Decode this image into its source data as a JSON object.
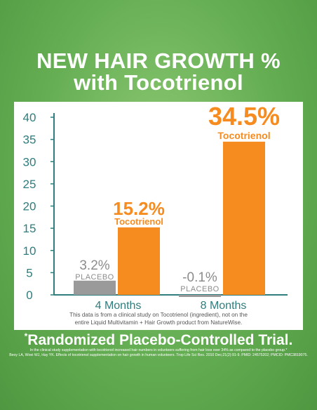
{
  "title_line1": "NEW HAIR GROWTH %",
  "title_line2": "with Tocotrienol",
  "chart_data": {
    "type": "bar",
    "categories": [
      "4 Months",
      "8 Months"
    ],
    "series": [
      {
        "name": "PLACEBO",
        "values": [
          3.2,
          -0.1
        ],
        "labels": [
          "3.2%",
          "-0.1%"
        ],
        "color": "#9a9a9a",
        "label_color": "#8c8c8c"
      },
      {
        "name": "Tocotrienol",
        "values": [
          15.2,
          34.5
        ],
        "labels": [
          "15.2%",
          "34.5%"
        ],
        "color": "#f68b1f",
        "label_color": "#f68b1f"
      }
    ],
    "ylim": [
      0,
      40
    ],
    "yticks": [
      "0",
      "5",
      "10",
      "15",
      "20",
      "25",
      "30",
      "35",
      "40"
    ],
    "axis_color": "#2f7d7d"
  },
  "footnote_line1": "This data is from a clinical study on Tocotrienol (ingredient), not on the",
  "footnote_line2": "entire Liquid Multivitamin + Hair Growth product from NatureWise.",
  "subtitle_mark": "*",
  "subtitle": "Randomized Placebo-Controlled Trial.",
  "fine_print_line1": "In the clinical study supplementation with tocotrienol increased hair numbers in volunteers suffering from hair loss over 34% as compared to the placebo group.*",
  "fine_print_line2": "Beoy LA, Woei WJ, Hay YK. Effects of tocotrienol supplementation on hair growth in human volunteers. Trop Life Sci Res. 2010 Dec;21(2):91-9. PMID: 24575202; PMCID: PMC3819075."
}
